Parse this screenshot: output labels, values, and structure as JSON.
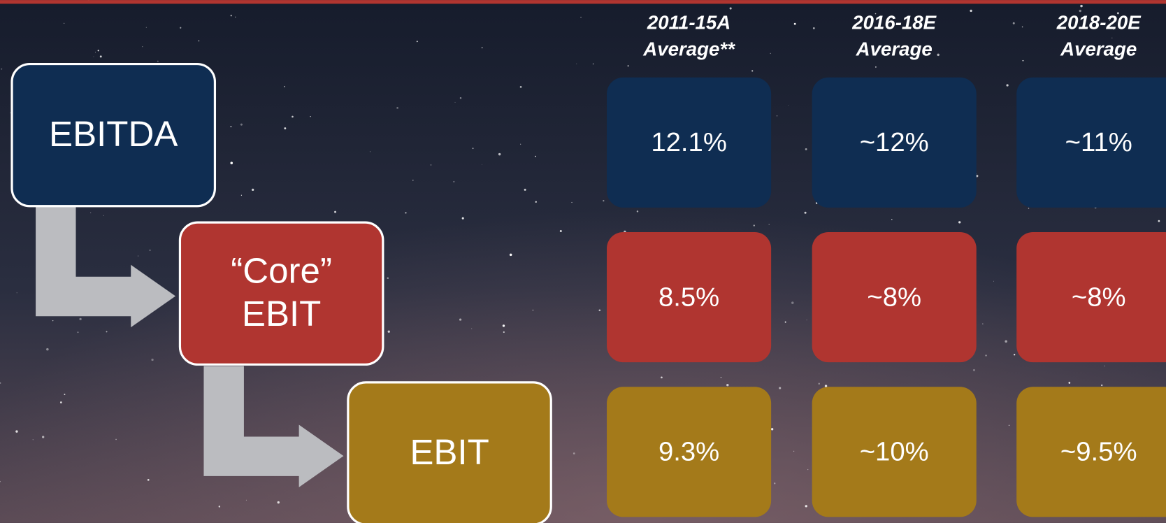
{
  "metrics": [
    {
      "label": [
        "EBITDA"
      ],
      "color": "#0f2d52"
    },
    {
      "label": [
        "“Core”",
        "EBIT"
      ],
      "color": "#b03530"
    },
    {
      "label": [
        "EBIT"
      ],
      "color": "#a47a1a"
    }
  ],
  "columns": [
    {
      "header": [
        "2011-15A",
        "Average**"
      ],
      "values": [
        "12.1%",
        "8.5%",
        "9.3%"
      ]
    },
    {
      "header": [
        "2016-18E",
        "Average"
      ],
      "values": [
        "~12%",
        "~8%",
        "~10%"
      ]
    },
    {
      "header": [
        "2018-20E",
        "Average"
      ],
      "values": [
        "~11%",
        "~8%",
        "~9.5%"
      ]
    }
  ]
}
